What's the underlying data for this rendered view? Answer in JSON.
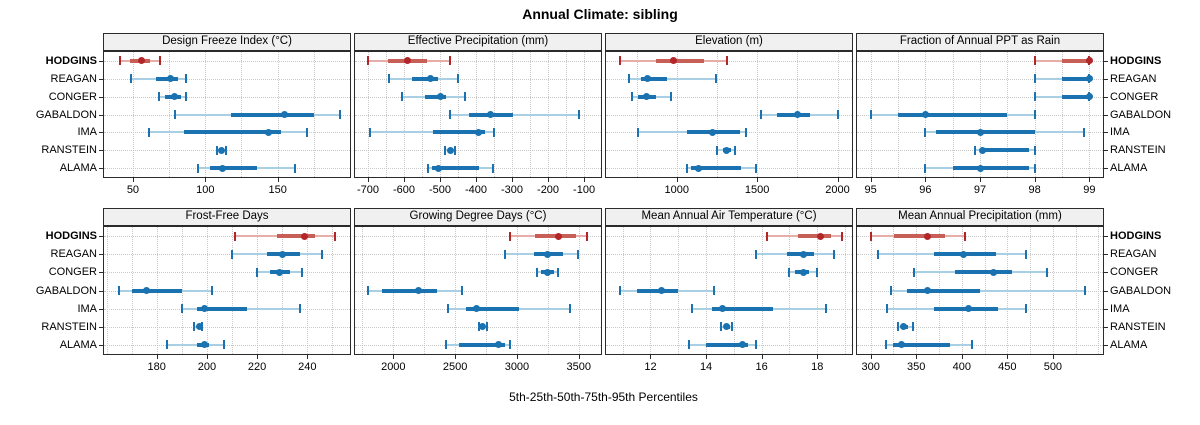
{
  "title": "Annual Climate: sibling",
  "footer": "5th-25th-50th-75th-95th Percentiles",
  "sites": [
    "HODGINS",
    "REAGAN",
    "CONGER",
    "GABALDON",
    "IMA",
    "RANSTEIN",
    "ALAMA"
  ],
  "highlight_site": "HODGINS",
  "colors": {
    "normal_main": "#1a72b0",
    "normal_mid": "#1a72b0",
    "normal_light": "#a9cfe5",
    "highlight_main": "#b2262a",
    "highlight_mid": "#c85f56",
    "highlight_light": "#e7aea9",
    "strip_bg": "#f0f0f0",
    "panel_border": "#2b2b2b",
    "grid": "#c9c9c9",
    "text": "#000000"
  },
  "chart_data": {
    "type": "dotplot-percentile-intervals",
    "percentile_levels": [
      5,
      25,
      50,
      75,
      95
    ],
    "grid": "dotted",
    "legend_position": "none",
    "layout": {
      "rows": 2,
      "cols": 4
    },
    "panels": [
      {
        "row": 0,
        "col": 0,
        "title": "Design Freeze Index (°C)",
        "xlim": [
          30,
          200
        ],
        "ticks": [
          50,
          100,
          150
        ],
        "series": [
          {
            "name": "HODGINS",
            "p": [
              41,
              48,
              56,
              62,
              69
            ]
          },
          {
            "name": "REAGAN",
            "p": [
              49,
              66,
              76,
              81,
              87
            ]
          },
          {
            "name": "CONGER",
            "p": [
              68,
              72,
              79,
              83,
              87
            ]
          },
          {
            "name": "GABALDON",
            "p": [
              79,
              118,
              155,
              175,
              193
            ]
          },
          {
            "name": "IMA",
            "p": [
              61,
              85,
              144,
              152,
              170
            ]
          },
          {
            "name": "RANSTEIN",
            "p": [
              108,
              110,
              111,
              113,
              114
            ]
          },
          {
            "name": "ALAMA",
            "p": [
              95,
              103,
              112,
              136,
              162
            ]
          }
        ]
      },
      {
        "row": 0,
        "col": 1,
        "title": "Effective Precipitation (mm)",
        "xlim": [
          -736,
          -53
        ],
        "ticks": [
          -700,
          -600,
          -500,
          -400,
          -300,
          -200,
          -100
        ],
        "series": [
          {
            "name": "HODGINS",
            "p": [
              -700,
              -643,
              -591,
              -536,
              -473
            ]
          },
          {
            "name": "REAGAN",
            "p": [
              -642,
              -578,
              -527,
              -505,
              -451
            ]
          },
          {
            "name": "CONGER",
            "p": [
              -605,
              -542,
              -498,
              -482,
              -431
            ]
          },
          {
            "name": "GABALDON",
            "p": [
              -471,
              -420,
              -360,
              -296,
              -115
            ]
          },
          {
            "name": "IMA",
            "p": [
              -693,
              -520,
              -393,
              -375,
              -349
            ]
          },
          {
            "name": "RANSTEIN",
            "p": [
              -486,
              -477,
              -470,
              -464,
              -459
            ]
          },
          {
            "name": "ALAMA",
            "p": [
              -534,
              -521,
              -503,
              -391,
              -353
            ]
          }
        ]
      },
      {
        "row": 0,
        "col": 2,
        "title": "Elevation (m)",
        "xlim": [
          560,
          2090
        ],
        "ticks": [
          1000,
          1500,
          2000
        ],
        "series": [
          {
            "name": "HODGINS",
            "p": [
              647,
              870,
              979,
              1169,
              1314
            ]
          },
          {
            "name": "REAGAN",
            "p": [
              705,
              777,
              818,
              942,
              1242
            ]
          },
          {
            "name": "CONGER",
            "p": [
              719,
              756,
              812,
              870,
              963
            ]
          },
          {
            "name": "GABALDON",
            "p": [
              1525,
              1624,
              1748,
              1830,
              2006
            ]
          },
          {
            "name": "IMA",
            "p": [
              760,
              1066,
              1225,
              1395,
              1432
            ]
          },
          {
            "name": "RANSTEIN",
            "p": [
              1252,
              1285,
              1310,
              1340,
              1362
            ]
          },
          {
            "name": "ALAMA",
            "p": [
              1062,
              1090,
              1138,
              1397,
              1496
            ]
          }
        ]
      },
      {
        "row": 0,
        "col": 3,
        "title": "Fraction of Annual PPT as Rain",
        "xlim": [
          94.75,
          99.25
        ],
        "ticks": [
          95,
          96,
          97,
          98,
          99
        ],
        "series": [
          {
            "name": "HODGINS",
            "p": [
              98,
              98.5,
              99,
              99,
              99
            ]
          },
          {
            "name": "REAGAN",
            "p": [
              98,
              98.5,
              99,
              99,
              99
            ]
          },
          {
            "name": "CONGER",
            "p": [
              98,
              98.5,
              99,
              99,
              99
            ]
          },
          {
            "name": "GABALDON",
            "p": [
              95,
              95.5,
              96,
              97.5,
              98
            ]
          },
          {
            "name": "IMA",
            "p": [
              96,
              96.2,
              97,
              98,
              98.9
            ]
          },
          {
            "name": "RANSTEIN",
            "p": [
              96.9,
              97,
              97.05,
              97.9,
              98
            ]
          },
          {
            "name": "ALAMA",
            "p": [
              96,
              96.5,
              97,
              97.9,
              98
            ]
          }
        ]
      },
      {
        "row": 1,
        "col": 0,
        "title": "Frost-Free Days",
        "xlim": [
          159,
          257
        ],
        "ticks": [
          180,
          200,
          220,
          240
        ],
        "series": [
          {
            "name": "HODGINS",
            "p": [
              211,
              228,
              239,
              243,
              251
            ]
          },
          {
            "name": "REAGAN",
            "p": [
              210,
              224,
              230,
              237,
              246
            ]
          },
          {
            "name": "CONGER",
            "p": [
              220,
              225,
              229,
              233,
              238
            ]
          },
          {
            "name": "GABALDON",
            "p": [
              165,
              170,
              176,
              190,
              202
            ]
          },
          {
            "name": "IMA",
            "p": [
              190,
              196,
              199,
              216,
              237
            ]
          },
          {
            "name": "RANSTEIN",
            "p": [
              195,
              196,
              197,
              197.5,
              198
            ]
          },
          {
            "name": "ALAMA",
            "p": [
              184,
              196,
              199,
              201,
              207
            ]
          }
        ]
      },
      {
        "row": 1,
        "col": 1,
        "title": "Growing Degree Days (°C)",
        "xlim": [
          1690,
          3680
        ],
        "ticks": [
          2000,
          2500,
          3000,
          3500
        ],
        "series": [
          {
            "name": "HODGINS",
            "p": [
              2940,
              3150,
              3340,
              3475,
              3570
            ]
          },
          {
            "name": "REAGAN",
            "p": [
              2900,
              3140,
              3250,
              3370,
              3495
            ]
          },
          {
            "name": "CONGER",
            "p": [
              3165,
              3195,
              3250,
              3300,
              3330
            ]
          },
          {
            "name": "GABALDON",
            "p": [
              1795,
              1905,
              2200,
              2350,
              2555
            ]
          },
          {
            "name": "IMA",
            "p": [
              2440,
              2590,
              2670,
              3020,
              3430
            ]
          },
          {
            "name": "RANSTEIN",
            "p": [
              2695,
              2710,
              2725,
              2740,
              2760
            ]
          },
          {
            "name": "ALAMA",
            "p": [
              2430,
              2535,
              2850,
              2900,
              2945
            ]
          }
        ]
      },
      {
        "row": 1,
        "col": 2,
        "title": "Mean Annual Air Temperature (°C)",
        "xlim": [
          10.4,
          19.25
        ],
        "ticks": [
          12,
          14,
          16,
          18
        ],
        "series": [
          {
            "name": "HODGINS",
            "p": [
              16.2,
              17.3,
              18.1,
              18.5,
              18.9
            ]
          },
          {
            "name": "REAGAN",
            "p": [
              15.8,
              16.9,
              17.5,
              17.9,
              18.6
            ]
          },
          {
            "name": "CONGER",
            "p": [
              17.0,
              17.2,
              17.5,
              17.7,
              18.0
            ]
          },
          {
            "name": "GABALDON",
            "p": [
              10.9,
              11.5,
              12.4,
              13.0,
              14.3
            ]
          },
          {
            "name": "IMA",
            "p": [
              13.5,
              14.2,
              14.6,
              16.4,
              18.3
            ]
          },
          {
            "name": "RANSTEIN",
            "p": [
              14.55,
              14.65,
              14.75,
              14.85,
              14.95
            ]
          },
          {
            "name": "ALAMA",
            "p": [
              13.4,
              14.0,
              15.3,
              15.5,
              15.8
            ]
          }
        ]
      },
      {
        "row": 1,
        "col": 3,
        "title": "Mean Annual Precipitation (mm)",
        "xlim": [
          285,
          555
        ],
        "ticks": [
          300,
          350,
          400,
          450,
          500
        ],
        "series": [
          {
            "name": "HODGINS",
            "p": [
              300,
              326,
              362,
              382,
              403
            ]
          },
          {
            "name": "REAGAN",
            "p": [
              308,
              370,
              402,
              438,
              470
            ]
          },
          {
            "name": "CONGER",
            "p": [
              348,
              393,
              435,
              455,
              493
            ]
          },
          {
            "name": "GABALDON",
            "p": [
              322,
              340,
              362,
              420,
              535
            ]
          },
          {
            "name": "IMA",
            "p": [
              318,
              370,
              407,
              440,
              470
            ]
          },
          {
            "name": "RANSTEIN",
            "p": [
              330,
              333,
              336,
              341,
              347
            ]
          },
          {
            "name": "ALAMA",
            "p": [
              317,
              325,
              334,
              387,
              411
            ]
          }
        ]
      }
    ]
  }
}
